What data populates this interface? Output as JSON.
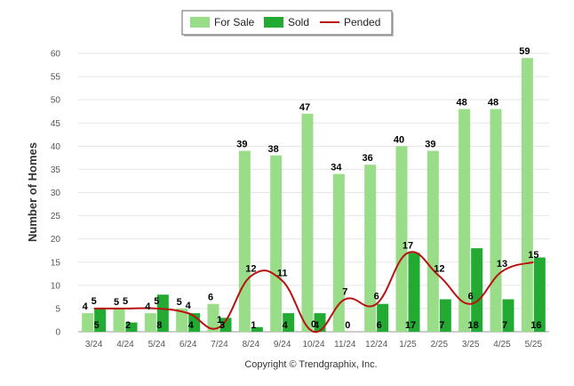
{
  "chart_data": {
    "type": "bar",
    "ylabel": "Number of Homes",
    "credit": "Copyright © Trendgraphix, Inc.",
    "ylim": [
      0,
      60
    ],
    "yticks": [
      "0",
      "5",
      "10",
      "15",
      "20",
      "25",
      "30",
      "35",
      "40",
      "45",
      "50",
      "55",
      "60"
    ],
    "categories": [
      "3/24",
      "4/24",
      "5/24",
      "6/24",
      "7/24",
      "8/24",
      "9/24",
      "10/24",
      "11/24",
      "12/24",
      "1/25",
      "2/25",
      "3/25",
      "4/25",
      "5/25"
    ],
    "grid": true,
    "legend_position": "top-center",
    "series": [
      {
        "name": "For Sale",
        "type": "bar",
        "color": "#99dd88",
        "values": [
          4,
          5,
          4,
          5,
          6,
          39,
          38,
          47,
          34,
          36,
          40,
          39,
          48,
          48,
          59
        ]
      },
      {
        "name": "Sold",
        "type": "bar",
        "color": "#22aa33",
        "values": [
          5,
          2,
          8,
          4,
          3,
          1,
          4,
          4,
          0,
          6,
          17,
          7,
          18,
          7,
          16
        ]
      },
      {
        "name": "Pended",
        "type": "line",
        "color": "#bb1111",
        "values": [
          5,
          5,
          5,
          4,
          1,
          12,
          11,
          0,
          7,
          6,
          17,
          12,
          6,
          13,
          15
        ]
      }
    ]
  }
}
